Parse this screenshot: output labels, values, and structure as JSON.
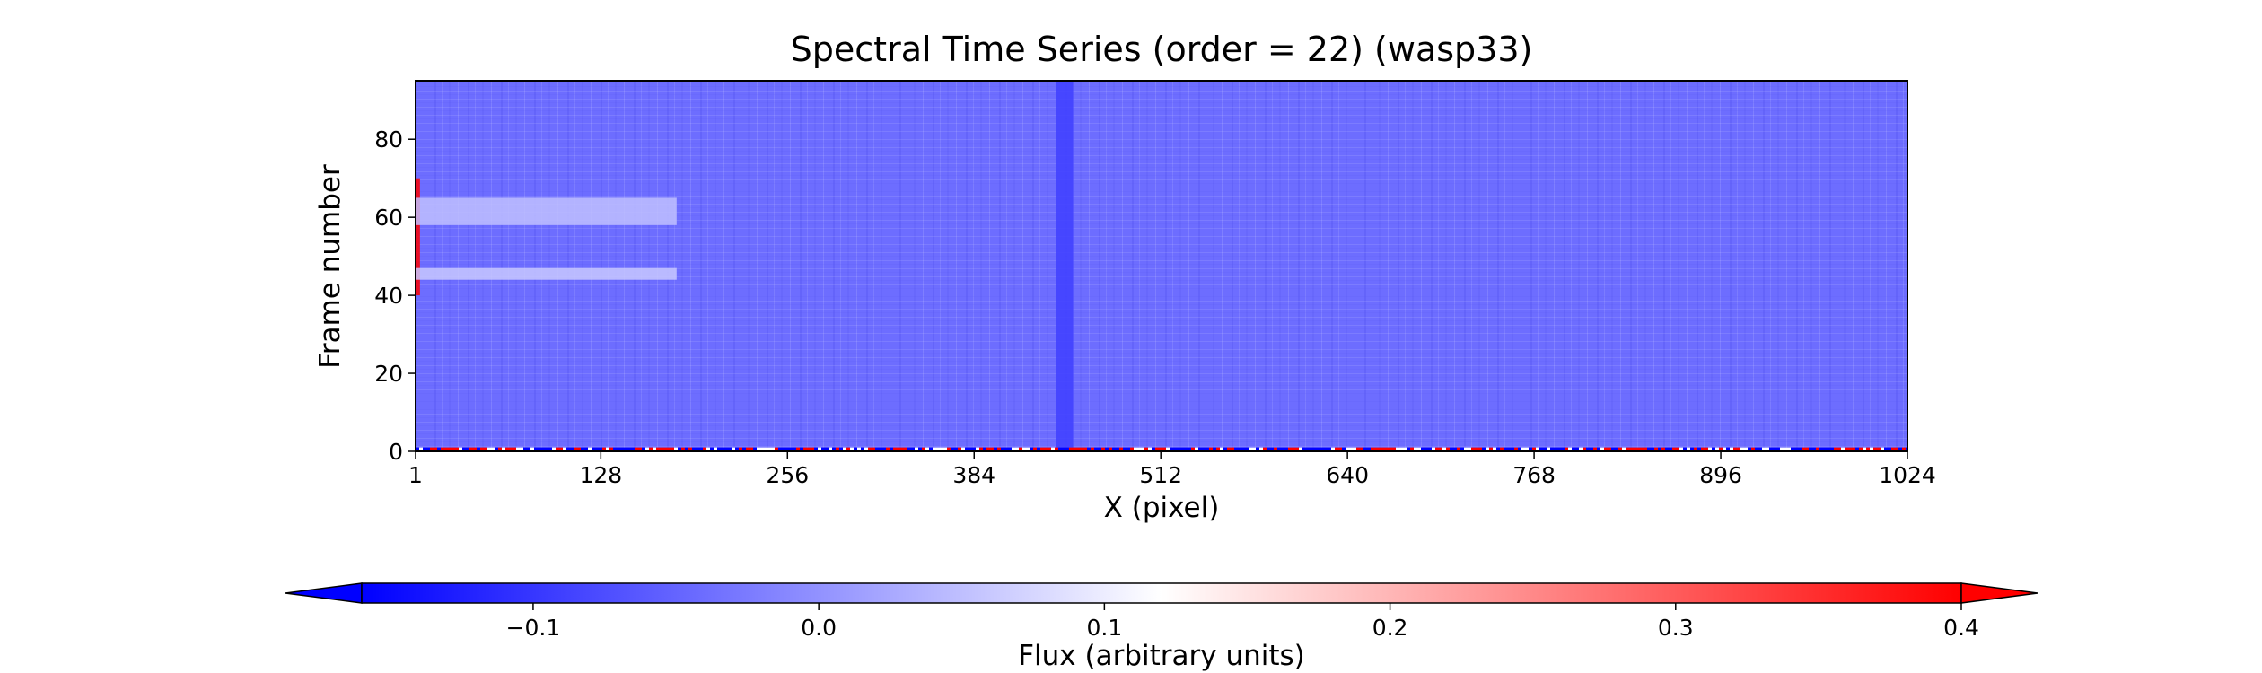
{
  "chart_data": {
    "type": "heatmap",
    "title": "Spectral Time Series (order = 22) (wasp33)",
    "xlabel": "X (pixel)",
    "ylabel": "Frame number",
    "xlim": [
      1,
      1024
    ],
    "ylim": [
      0,
      95
    ],
    "xticks": [
      "1",
      "128",
      "256",
      "384",
      "512",
      "640",
      "768",
      "896",
      "1024"
    ],
    "yticks": [
      "0",
      "20",
      "40",
      "60",
      "80"
    ],
    "colorbar": {
      "label": "Flux (arbitrary units)",
      "range": [
        -0.16,
        0.4
      ],
      "ticks": [
        "−0.1",
        "0.0",
        "0.1",
        "0.2",
        "0.3",
        "0.4"
      ],
      "extend": "both",
      "colormap": "bwr",
      "low_color": "#0000ff",
      "mid_color": "#ffffff",
      "high_color": "#ff0000"
    },
    "typical_value": -0.04,
    "features": [
      {
        "description": "dark vertical band",
        "x_range": [
          440,
          452
        ],
        "y_range": [
          0,
          95
        ],
        "value": -0.09
      },
      {
        "description": "noisy bottom row",
        "x_range": [
          1,
          1024
        ],
        "y_range": [
          0,
          1
        ],
        "value": "mixed"
      },
      {
        "description": "high-flux edge",
        "x_range": [
          1,
          4
        ],
        "y_range": [
          40,
          70
        ],
        "value": 0.4
      },
      {
        "description": "bright horizontal bands",
        "x_range": [
          1,
          180
        ],
        "y_range": [
          44,
          47
        ],
        "value": 0.06
      },
      {
        "description": "bright horizontal bands",
        "x_range": [
          1,
          180
        ],
        "y_range": [
          58,
          65
        ],
        "value": 0.05
      }
    ]
  }
}
